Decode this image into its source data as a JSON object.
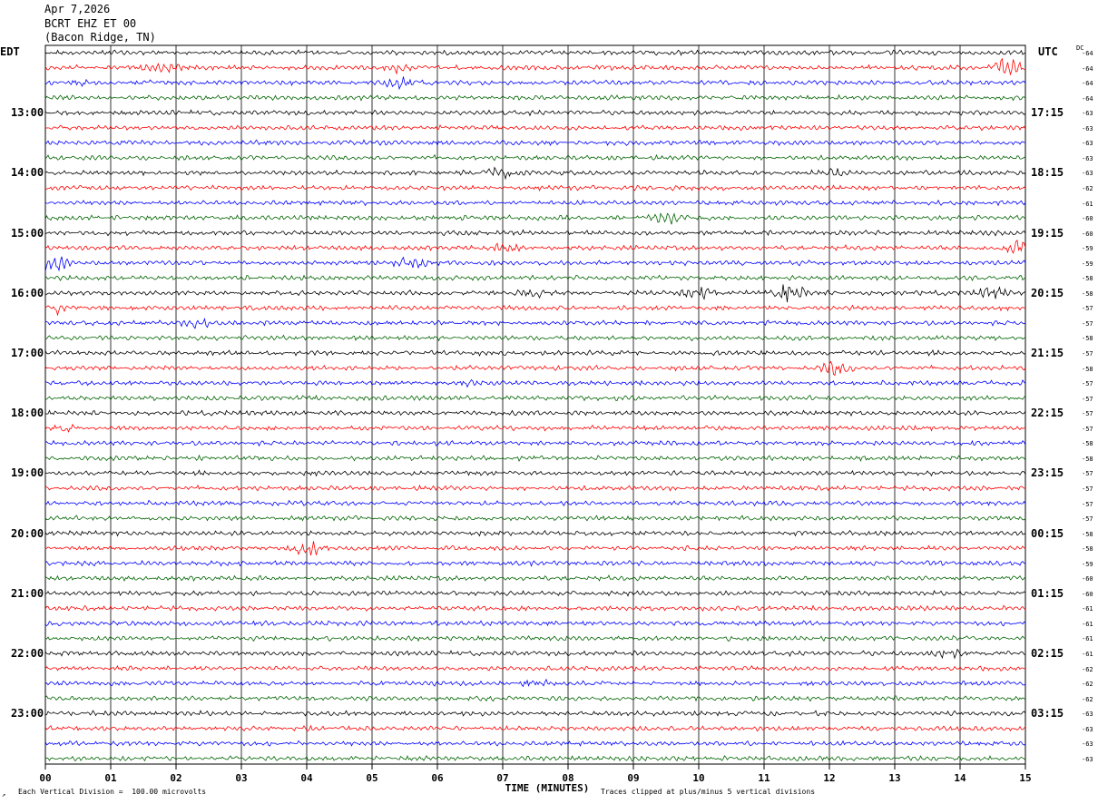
{
  "header": {
    "date": "Apr 7,2026",
    "station": "BCRT EHZ ET 00",
    "location": "(Bacon Ridge, TN)"
  },
  "left_label": "EDT",
  "right_label": "UTC",
  "dc_label": "DC",
  "footer": {
    "scale_note": "Each Vertical Division =  100.00 microvolts",
    "clip_note": "Traces clipped at plus/minus 5 vertical divisions"
  },
  "chart_data": {
    "type": "line",
    "subtype": "helicorder",
    "xlabel": "TIME (MINUTES)",
    "x_ticks": [
      "00",
      "01",
      "02",
      "03",
      "04",
      "05",
      "06",
      "07",
      "08",
      "09",
      "10",
      "11",
      "12",
      "13",
      "14",
      "15"
    ],
    "xlim": [
      0,
      15
    ],
    "rows_per_hour": 4,
    "row_count": 48,
    "trace_colors": [
      "#000000",
      "#ff0000",
      "#0000ff",
      "#006400"
    ],
    "left_hour_labels": [
      "13:00",
      "14:00",
      "15:00",
      "16:00",
      "17:00",
      "18:00",
      "19:00",
      "20:00",
      "21:00",
      "22:00",
      "23:00"
    ],
    "right_hour_labels": [
      "17:15",
      "18:15",
      "19:15",
      "20:15",
      "21:15",
      "22:15",
      "23:15",
      "00:15",
      "01:15",
      "02:15",
      "03:15"
    ],
    "first_labeled_row": 4,
    "dc_offsets": [
      "-64",
      "-64",
      "-64",
      "-64",
      "-63",
      "-63",
      "-63",
      "-63",
      "-63",
      "-62",
      "-61",
      "-60",
      "-60",
      "-59",
      "-59",
      "-58",
      "-58",
      "-57",
      "-57",
      "-58",
      "-57",
      "-58",
      "-57",
      "-57",
      "-57",
      "-57",
      "-58",
      "-58",
      "-57",
      "-57",
      "-57",
      "-57",
      "-58",
      "-58",
      "-59",
      "-60",
      "-60",
      "-61",
      "-61",
      "-61",
      "-61",
      "-62",
      "-62",
      "-62",
      "-63",
      "-63",
      "-63",
      "-63"
    ],
    "grid": true,
    "vertical_division_microvolts": 100.0,
    "clip_divisions": 5,
    "events": [
      {
        "row": 1,
        "minute": 14.75,
        "amplitude": 8
      },
      {
        "row": 1,
        "minute": 1.8,
        "amplitude": 3
      },
      {
        "row": 1,
        "minute": 5.4,
        "amplitude": 3
      },
      {
        "row": 2,
        "minute": 0.6,
        "amplitude": 3
      },
      {
        "row": 2,
        "minute": 5.4,
        "amplitude": 4
      },
      {
        "row": 8,
        "minute": 7.0,
        "amplitude": 4
      },
      {
        "row": 8,
        "minute": 12.0,
        "amplitude": 3
      },
      {
        "row": 11,
        "minute": 9.5,
        "amplitude": 4
      },
      {
        "row": 13,
        "minute": 14.9,
        "amplitude": 6
      },
      {
        "row": 13,
        "minute": 7.1,
        "amplitude": 3
      },
      {
        "row": 14,
        "minute": 0.1,
        "amplitude": 7
      },
      {
        "row": 14,
        "minute": 5.6,
        "amplitude": 4
      },
      {
        "row": 16,
        "minute": 11.4,
        "amplitude": 8
      },
      {
        "row": 16,
        "minute": 10.0,
        "amplitude": 5
      },
      {
        "row": 16,
        "minute": 7.5,
        "amplitude": 3
      },
      {
        "row": 16,
        "minute": 14.5,
        "amplitude": 4
      },
      {
        "row": 17,
        "minute": 0.2,
        "amplitude": 4
      },
      {
        "row": 18,
        "minute": 2.3,
        "amplitude": 3
      },
      {
        "row": 21,
        "minute": 12.1,
        "amplitude": 5
      },
      {
        "row": 22,
        "minute": 6.5,
        "amplitude": 3
      },
      {
        "row": 25,
        "minute": 0.3,
        "amplitude": 3
      },
      {
        "row": 33,
        "minute": 4.0,
        "amplitude": 6
      },
      {
        "row": 40,
        "minute": 13.8,
        "amplitude": 3
      },
      {
        "row": 42,
        "minute": 7.6,
        "amplitude": 3
      }
    ]
  }
}
